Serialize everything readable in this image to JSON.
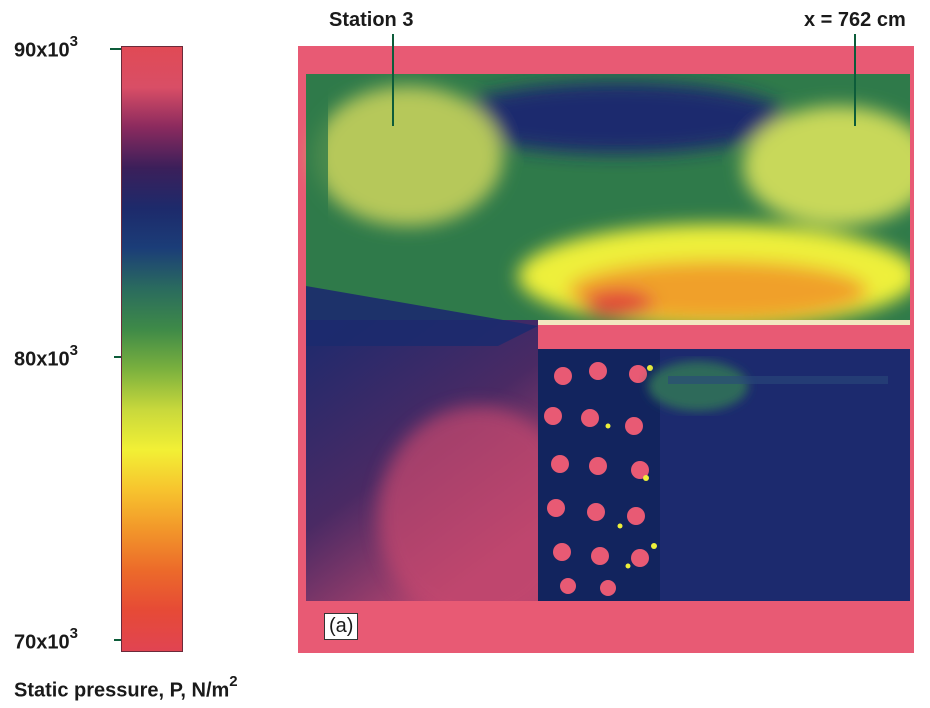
{
  "colorbar": {
    "ticks": [
      {
        "base": "90x10",
        "exp": "3"
      },
      {
        "base": "80x10",
        "exp": "3"
      },
      {
        "base": "70x10",
        "exp": "3"
      }
    ],
    "label_base": "Static pressure, P, N/m",
    "label_exp": "2",
    "stops": [
      "#e04a55",
      "#d94e66",
      "#8a2a5e",
      "#3b1f5a",
      "#1d2a6b",
      "#1b3d78",
      "#2a6b5e",
      "#3e8a48",
      "#7ab03e",
      "#c8d83c",
      "#f2f035",
      "#f7c42e",
      "#f2962a",
      "#ec6a2a",
      "#e64a36",
      "#e14452"
    ]
  },
  "annotations": {
    "station": "Station 3",
    "position": "x = 762 cm",
    "panel": "(a)"
  },
  "colors": {
    "background_pink": "#e85a74",
    "deep_blue": "#1c2a6e",
    "green": "#2f7a4a",
    "yellow": "#eef03a",
    "orange": "#f0802a",
    "red": "#e0403a",
    "leader_green": "#0d5c3a"
  }
}
